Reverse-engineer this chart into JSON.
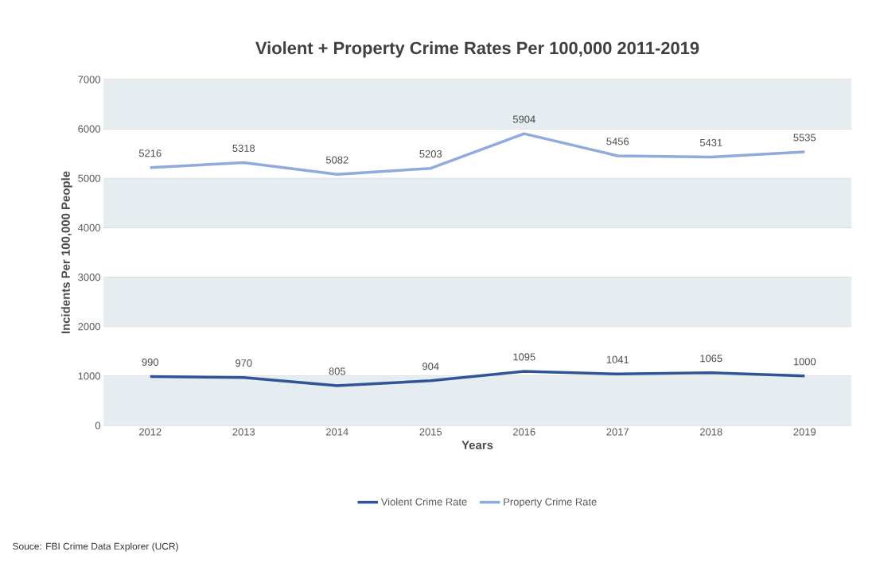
{
  "chart_data": {
    "type": "line",
    "title": "Violent + Property Crime Rates Per 100,000 2011-2019",
    "xlabel": "Years",
    "ylabel": "Incidents Per 100,000 People",
    "categories": [
      "2012",
      "2013",
      "2014",
      "2015",
      "2016",
      "2017",
      "2018",
      "2019"
    ],
    "series": [
      {
        "name": "Violent Crime Rate",
        "color": "#2f5597",
        "values": [
          990,
          970,
          805,
          904,
          1095,
          1041,
          1065,
          1000
        ]
      },
      {
        "name": "Property Crime Rate",
        "color": "#8faadc",
        "values": [
          5216,
          5318,
          5082,
          5203,
          5904,
          5456,
          5431,
          5535
        ]
      }
    ],
    "ylim": [
      0,
      7000
    ],
    "yticks": [
      0,
      1000,
      2000,
      3000,
      4000,
      5000,
      6000,
      7000
    ],
    "grid": "y",
    "legend": "bottom",
    "marker": "none",
    "line_style": "solid",
    "data_labels": true,
    "bands": [
      {
        "axis": "y",
        "from": 0,
        "to": 1000,
        "color": "#e6edf1"
      },
      {
        "axis": "y",
        "from": 2000,
        "to": 3000,
        "color": "#e6edf1"
      },
      {
        "axis": "y",
        "from": 4000,
        "to": 5000,
        "color": "#e6edf1"
      },
      {
        "axis": "y",
        "from": 6000,
        "to": 7000,
        "color": "#e6edf1"
      }
    ],
    "annotations": [
      "Souce:  FBI Crime Data Explorer (UCR)"
    ]
  }
}
